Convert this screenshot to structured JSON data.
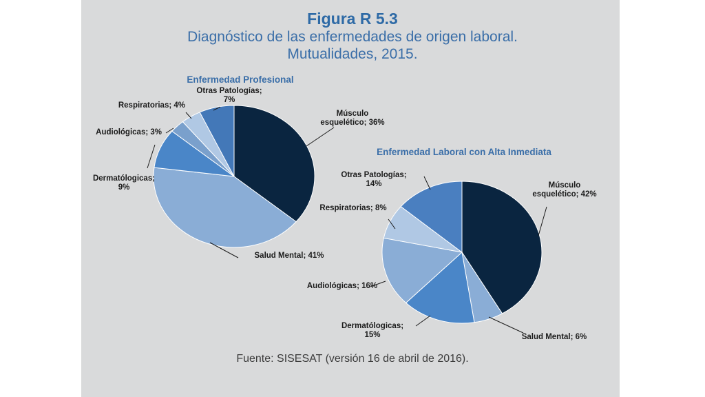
{
  "figure": {
    "label": "Figura R 5.3",
    "subtitle_line1": "Diagnóstico de las enfermedades de origen laboral.",
    "subtitle_line2": "Mutualidades, 2015.",
    "source": "Fuente: SISESAT (versión 16 de abril de 2016)."
  },
  "chart_data": [
    {
      "type": "pie",
      "title": "Enfermedad Profesional",
      "slices": [
        {
          "category": "Músculo esquelético",
          "value": 36,
          "color": "#0a2540",
          "label_lines": [
            "Músculo",
            "esquelético; 36%"
          ]
        },
        {
          "category": "Salud Mental",
          "value": 41,
          "color": "#8aadd6",
          "label_lines": [
            "Salud Mental; 41%"
          ]
        },
        {
          "category": "Dermatólogicas",
          "value": 9,
          "color": "#4a86c8",
          "label_lines": [
            "Dermatólogicas;",
            "9%"
          ]
        },
        {
          "category": "Audiológicas",
          "value": 3,
          "color": "#7aa0cc",
          "label_lines": [
            "Audiológicas; 3%"
          ]
        },
        {
          "category": "Respiratorias",
          "value": 4,
          "color": "#b0c8e4",
          "label_lines": [
            "Respiratorias; 4%"
          ]
        },
        {
          "category": "Otras Patologías",
          "value": 7,
          "color": "#4378b8",
          "label_lines": [
            "Otras Patologías;",
            "7%"
          ]
        }
      ]
    },
    {
      "type": "pie",
      "title": "Enfermedad Laboral con Alta Inmediata",
      "slices": [
        {
          "category": "Músculo esquelético",
          "value": 42,
          "color": "#0a2540",
          "label_lines": [
            "Músculo",
            "esquelético; 42%"
          ]
        },
        {
          "category": "Salud Mental",
          "value": 6,
          "color": "#8aadd6",
          "label_lines": [
            "Salud Mental; 6%"
          ]
        },
        {
          "category": "Dermatólogicas",
          "value": 15,
          "color": "#4a86c8",
          "label_lines": [
            "Dermatólogicas;",
            "15%"
          ]
        },
        {
          "category": "Audiológicas",
          "value": 16,
          "color": "#8aadd6",
          "label_lines": [
            "Audiológicas; 16%"
          ]
        },
        {
          "category": "Respiratorias",
          "value": 8,
          "color": "#b0c8e4",
          "label_lines": [
            "Respiratorias; 8%"
          ]
        },
        {
          "category": "Otras Patologías",
          "value": 14,
          "color": "#4a7fc0",
          "label_lines": [
            "Otras Patologías;",
            "14%"
          ]
        }
      ]
    }
  ]
}
